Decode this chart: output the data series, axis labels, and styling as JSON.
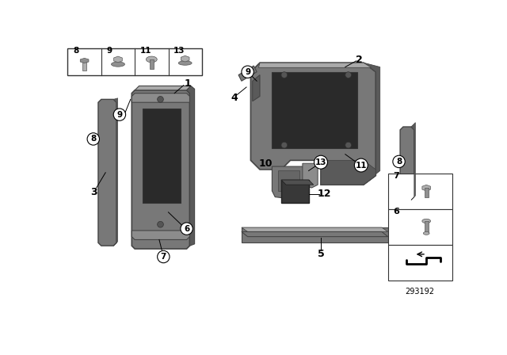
{
  "background_color": "#ffffff",
  "part_number": "293192",
  "panel_gray": "#8c8c8c",
  "panel_dark": "#5a5a5a",
  "panel_mid": "#787878",
  "panel_light": "#aaaaaa",
  "panel_shadow": "#444444",
  "cutout_dark": "#2a2a2a",
  "hardware_gray": "#b0b0b0",
  "hardware_mid": "#909090",
  "relay_dark": "#3a3a3a",
  "line_color": "#000000",
  "label_color": "#000000"
}
